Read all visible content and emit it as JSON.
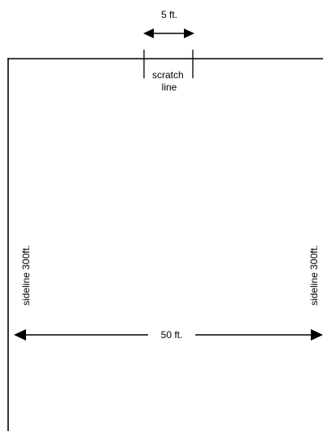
{
  "scratch_width_label": "5 ft.",
  "scratch_line_label": [
    "scratch",
    "line"
  ],
  "sideline_left_label": "sideline 300ft.",
  "sideline_right_label": "sideline 300ft.",
  "field_width_label": "50 ft.",
  "colors": {
    "line": "#000000",
    "background": "#ffffff"
  }
}
